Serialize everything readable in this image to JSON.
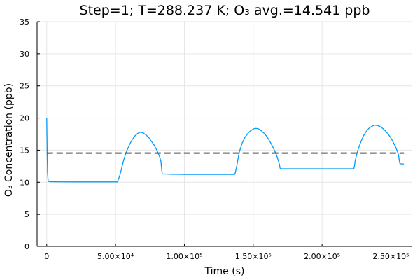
{
  "chart_data": {
    "type": "line",
    "title": "Step=1; T=288.237 K; O₃ avg.=14.541 ppb",
    "xlabel": "Time (s)",
    "ylabel": "O₃ Concentration (ppb)",
    "xlim": [
      -7000,
      265000
    ],
    "ylim": [
      0,
      35
    ],
    "grid": true,
    "legend": "none",
    "x_ticks": [
      0,
      50000,
      100000,
      150000,
      200000,
      250000
    ],
    "x_tick_labels": [
      "0",
      "5.00×10⁴",
      "1.00×10⁵",
      "1.50×10⁵",
      "2.00×10⁵",
      "2.50×10⁵"
    ],
    "y_ticks": [
      0,
      5,
      10,
      15,
      20,
      25,
      30,
      35
    ],
    "y_tick_labels": [
      "0",
      "5",
      "10",
      "15",
      "20",
      "25",
      "30",
      "35"
    ],
    "series": [
      {
        "color": "#009AFA",
        "style": "solid",
        "x": [
          0,
          300,
          600,
          1000,
          1500,
          2000,
          3000,
          5000,
          10000,
          20000,
          30000,
          40000,
          50000,
          51500,
          52000,
          53000,
          54000,
          55000,
          56000,
          57000,
          58000,
          60000,
          62000,
          64000,
          66000,
          68000,
          70000,
          72000,
          74000,
          76000,
          78000,
          80000,
          81000,
          82000,
          83000,
          83700,
          84000,
          90000,
          100000,
          110000,
          120000,
          130000,
          136500,
          137000,
          138000,
          139000,
          140000,
          142000,
          144000,
          146000,
          148000,
          150000,
          152000,
          154000,
          156000,
          158000,
          160000,
          162000,
          164000,
          166000,
          167000,
          168000,
          169000,
          169500,
          170000,
          180000,
          190000,
          200000,
          210000,
          220000,
          223000,
          223500,
          224000,
          225000,
          226000,
          228000,
          230000,
          232000,
          234000,
          236000,
          238000,
          240000,
          242000,
          244000,
          246000,
          248000,
          250000,
          252000,
          254000,
          255500,
          256000,
          256500,
          258000,
          259500
        ],
        "y": [
          20.0,
          15.0,
          11.5,
          10.3,
          10.12,
          10.1,
          10.08,
          10.07,
          10.06,
          10.05,
          10.05,
          10.05,
          10.05,
          10.05,
          10.4,
          11.0,
          11.8,
          12.7,
          13.5,
          14.2,
          14.8,
          15.8,
          16.6,
          17.2,
          17.6,
          17.8,
          17.7,
          17.4,
          17.0,
          16.4,
          15.8,
          15.0,
          14.5,
          14.0,
          13.2,
          11.6,
          11.3,
          11.25,
          11.22,
          11.22,
          11.22,
          11.22,
          11.22,
          11.5,
          12.5,
          13.7,
          14.8,
          16.1,
          17.0,
          17.6,
          18.0,
          18.3,
          18.4,
          18.3,
          18.0,
          17.6,
          17.1,
          16.4,
          15.6,
          14.7,
          14.2,
          13.5,
          12.8,
          12.2,
          12.1,
          12.1,
          12.1,
          12.1,
          12.1,
          12.1,
          12.1,
          12.5,
          13.3,
          14.2,
          15.0,
          16.2,
          17.2,
          17.9,
          18.4,
          18.7,
          18.9,
          18.85,
          18.7,
          18.4,
          18.0,
          17.5,
          16.9,
          16.1,
          15.2,
          14.3,
          13.5,
          12.9,
          12.85,
          12.85
        ]
      },
      {
        "color": "#555555",
        "style": "dashed",
        "x": [
          0,
          259500
        ],
        "y": [
          14.541,
          14.541
        ]
      }
    ]
  }
}
